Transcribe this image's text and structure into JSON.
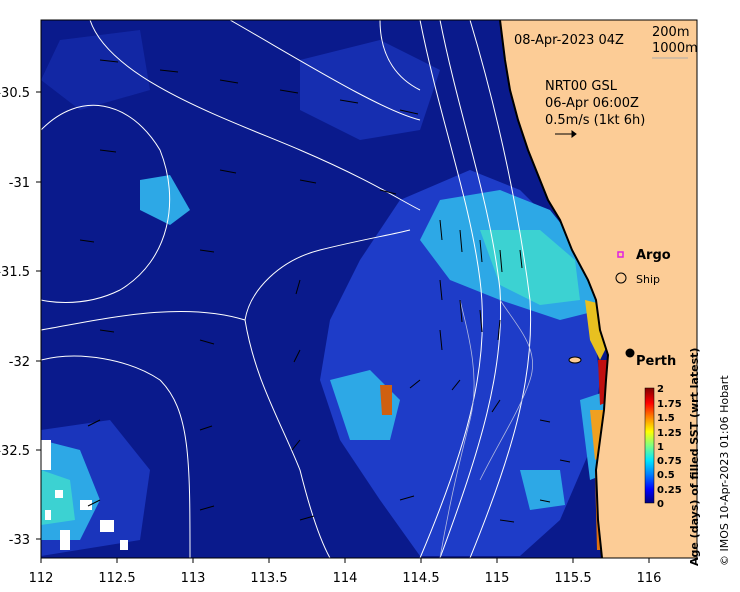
{
  "header": {
    "date_label": "08-Apr-2023 04Z",
    "contour_200": "200m",
    "contour_1000": "1000m"
  },
  "current_info": {
    "line1": "NRT00 GSL",
    "line2": "06-Apr 06:00Z",
    "line3": "0.5m/s (1kt 6h)"
  },
  "legend": {
    "argo_label": "Argo",
    "ship_label": "Ship",
    "argo_color": "#e020e0"
  },
  "place": {
    "perth_label": "Perth"
  },
  "colorbar": {
    "title": "Age (days) of filled SST (wrt latest)",
    "ticks": [
      "2",
      "1.75",
      "1.5",
      "1.25",
      "1",
      "0.75",
      "0.5",
      "0.25",
      "0"
    ],
    "colors": [
      "#00007f",
      "#0000ff",
      "#0080ff",
      "#00e5ff",
      "#40ffbf",
      "#80ff80",
      "#ffff00",
      "#ff8000",
      "#ff0000",
      "#800000"
    ]
  },
  "axes": {
    "x_ticks": [
      "112",
      "112.5",
      "113",
      "113.5",
      "114",
      "114.5",
      "115",
      "115.5",
      "116"
    ],
    "y_ticks": [
      "-30.5",
      "-31",
      "-31.5",
      "-32",
      "-32.5",
      "-33"
    ]
  },
  "copyright": "© IMOS 10-Apr-2023 01:06 Hobart",
  "colors": {
    "ocean_deep": "#0a1a8c",
    "land": "#fccc96",
    "ocean_mid": "#1e3cc8",
    "ocean_light": "#2da8e6",
    "ocean_cyan": "#3cd2d2"
  }
}
